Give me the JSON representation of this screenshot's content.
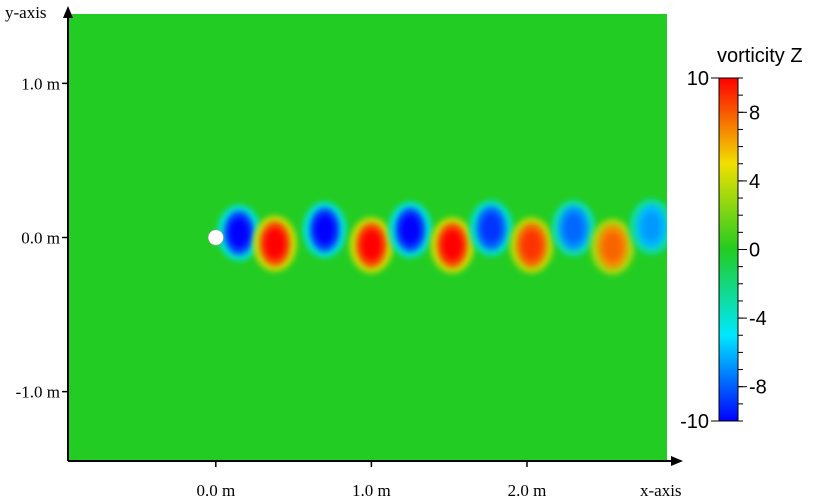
{
  "chart_data": {
    "type": "heatmap",
    "title": "",
    "xlabel": "x-axis",
    "ylabel": "y-axis",
    "xlim": [
      -0.95,
      2.9
    ],
    "ylim": [
      -1.45,
      1.45
    ],
    "x_ticks": [
      {
        "value": 0,
        "label": "0.0 m"
      },
      {
        "value": 1,
        "label": "1.0 m"
      },
      {
        "value": 2,
        "label": "2.0 m"
      }
    ],
    "y_ticks": [
      {
        "value": 1,
        "label": "1.0 m"
      },
      {
        "value": 0,
        "label": "0.0 m"
      },
      {
        "value": -1,
        "label": "-1.0 m"
      }
    ],
    "background_color": "#22cc22",
    "obstacle": {
      "shape": "circle",
      "center": [
        0.0,
        0.0
      ],
      "radius": 0.05,
      "color": "#ffffff"
    },
    "colorbar": {
      "label": "vorticity Z",
      "min": -10,
      "max": 10,
      "tick_labels": [
        {
          "value": 10,
          "label": "10"
        },
        {
          "value": 8,
          "label": "8"
        },
        {
          "value": 4,
          "label": "4"
        },
        {
          "value": 0,
          "label": "0"
        },
        {
          "value": -4,
          "label": "-4"
        },
        {
          "value": -8,
          "label": "-8"
        },
        {
          "value": -10,
          "label": "-10"
        }
      ],
      "colormap": [
        "#0000ff",
        "#00e8ff",
        "#22cc22",
        "#f0e000",
        "#ff0000"
      ]
    },
    "vortices": [
      {
        "x": 0.15,
        "y": 0.03,
        "vorticity": -10
      },
      {
        "x": 0.38,
        "y": -0.04,
        "vorticity": 10
      },
      {
        "x": 0.7,
        "y": 0.05,
        "vorticity": -10
      },
      {
        "x": 1.0,
        "y": -0.05,
        "vorticity": 10
      },
      {
        "x": 1.25,
        "y": 0.05,
        "vorticity": -10
      },
      {
        "x": 1.52,
        "y": -0.05,
        "vorticity": 10
      },
      {
        "x": 1.77,
        "y": 0.06,
        "vorticity": -9
      },
      {
        "x": 2.03,
        "y": -0.05,
        "vorticity": 9
      },
      {
        "x": 2.3,
        "y": 0.06,
        "vorticity": -8
      },
      {
        "x": 2.55,
        "y": -0.06,
        "vorticity": 8
      },
      {
        "x": 2.8,
        "y": 0.07,
        "vorticity": -7
      }
    ]
  }
}
